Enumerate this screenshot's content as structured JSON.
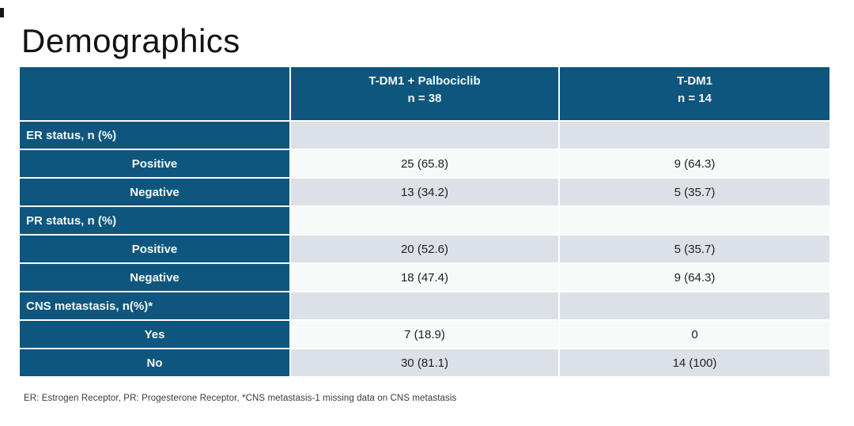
{
  "slide": {
    "title": "Demographics",
    "footnote": "ER: Estrogen Receptor, PR: Progesterone Receptor, *CNS metastasis-1 missing data on CNS metastasis"
  },
  "colors": {
    "header_blue": "#0E567D",
    "row_gray": "#DBE1E7",
    "row_light": "#F6FBFA"
  },
  "table": {
    "columns": [
      {
        "title": "",
        "subtitle": ""
      },
      {
        "title": "T-DM1 + Palbociclib",
        "subtitle": "n = 38"
      },
      {
        "title": "T-DM1",
        "subtitle": "n = 14"
      }
    ],
    "rows": [
      {
        "label": "ER status, n (%)",
        "type": "section",
        "values": [
          "",
          ""
        ]
      },
      {
        "label": "Positive",
        "type": "sub",
        "values": [
          "25 (65.8)",
          "9 (64.3)"
        ]
      },
      {
        "label": "Negative",
        "type": "sub",
        "values": [
          "13 (34.2)",
          "5 (35.7)"
        ]
      },
      {
        "label": "PR status, n (%)",
        "type": "section",
        "values": [
          "",
          ""
        ]
      },
      {
        "label": "Positive",
        "type": "sub",
        "values": [
          "20 (52.6)",
          "5 (35.7)"
        ]
      },
      {
        "label": "Negative",
        "type": "sub",
        "values": [
          "18 (47.4)",
          "9 (64.3)"
        ]
      },
      {
        "label": "CNS metastasis, n(%)*",
        "type": "section",
        "values": [
          "",
          ""
        ]
      },
      {
        "label": "Yes",
        "type": "sub",
        "values": [
          "7 (18.9)",
          "0"
        ]
      },
      {
        "label": "No",
        "type": "sub",
        "values": [
          "30 (81.1)",
          "14 (100)"
        ]
      }
    ]
  }
}
